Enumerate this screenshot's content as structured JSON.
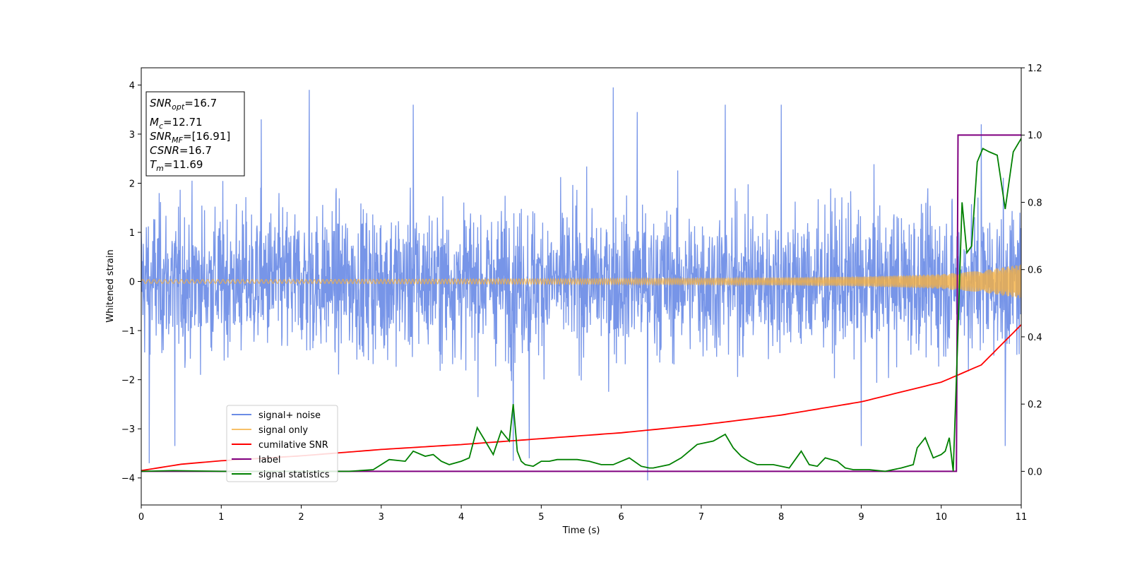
{
  "colors": {
    "signal_noise": "#6b8ce6",
    "signal_only": "#f5b041",
    "cumulative_snr": "#ff0000",
    "label": "#800080",
    "signal_statistics": "#008000"
  },
  "info_box": {
    "line1_main": "SNR",
    "line1_sub": "opt",
    "line1_value": "=16.7",
    "line2_main": "M",
    "line2_sub": "c",
    "line2_value": "=12.71",
    "line3_main": "SNR",
    "line3_sub": "MF",
    "line3_value": "=[16.91]",
    "line4_main": "CSNR",
    "line4_value": "=16.7",
    "line5_main": "T",
    "line5_sub": "m",
    "line5_value": "=11.69"
  },
  "chart_data": {
    "type": "line",
    "xlabel": "Time (s)",
    "ylabel": "Whitened strain",
    "xlim": [
      0,
      11
    ],
    "ylim": [
      -4.55,
      4.35
    ],
    "y2lim": [
      -0.1,
      1.2
    ],
    "x_ticks": [
      "0",
      "1",
      "2",
      "3",
      "4",
      "5",
      "6",
      "7",
      "8",
      "9",
      "10",
      "11"
    ],
    "y_ticks": [
      "−4",
      "−3",
      "−2",
      "−1",
      "0",
      "1",
      "2",
      "3",
      "4"
    ],
    "y2_ticks": [
      "0.0",
      "0.2",
      "0.4",
      "0.6",
      "0.8",
      "1.0",
      "1.2"
    ],
    "legend_position": "lower-left",
    "series": [
      {
        "name": "signal+ noise",
        "axis": "left",
        "description_values": "noise band approx ±2.5 with spikes to about ±4",
        "spikes": [
          [
            2.1,
            3.9
          ],
          [
            5.9,
            3.95
          ],
          [
            6.33,
            -4.05
          ],
          [
            10.5,
            3.2
          ],
          [
            0.1,
            -3.7
          ],
          [
            0.42,
            -3.35
          ],
          [
            4.65,
            -3.65
          ],
          [
            4.85,
            -3.6
          ],
          [
            9.0,
            -3.35
          ],
          [
            10.8,
            -3.35
          ],
          [
            1.5,
            3.3
          ],
          [
            3.4,
            3.6
          ],
          [
            7.3,
            3.6
          ],
          [
            8.0,
            3.6
          ],
          [
            6.2,
            3.45
          ]
        ]
      },
      {
        "name": "signal only",
        "axis": "left",
        "x": [
          0,
          2,
          4,
          6,
          8,
          9,
          10,
          10.5,
          11
        ],
        "amplitude": [
          0.04,
          0.04,
          0.05,
          0.06,
          0.08,
          0.1,
          0.15,
          0.22,
          0.35
        ]
      },
      {
        "name": "cumilative SNR",
        "axis": "left",
        "x": [
          0,
          0.5,
          1,
          2,
          3,
          4,
          5,
          6,
          7,
          8,
          9,
          10,
          10.5,
          11
        ],
        "y": [
          -3.85,
          -3.72,
          -3.65,
          -3.55,
          -3.42,
          -3.32,
          -3.2,
          -3.08,
          -2.92,
          -2.72,
          -2.45,
          -2.05,
          -1.7,
          -0.88
        ]
      },
      {
        "name": "label",
        "axis": "right",
        "x": [
          0,
          10.19,
          10.21,
          11
        ],
        "y": [
          0,
          0,
          1,
          1
        ]
      },
      {
        "name": "signal statistics",
        "axis": "right",
        "x": [
          0,
          0.4,
          1,
          2,
          2.6,
          2.9,
          3.0,
          3.1,
          3.3,
          3.4,
          3.55,
          3.65,
          3.75,
          3.85,
          4.0,
          4.1,
          4.2,
          4.3,
          4.4,
          4.5,
          4.6,
          4.65,
          4.7,
          4.75,
          4.8,
          4.9,
          5.0,
          5.1,
          5.2,
          5.3,
          5.45,
          5.6,
          5.75,
          5.9,
          6.1,
          6.25,
          6.35,
          6.4,
          6.6,
          6.75,
          6.85,
          6.95,
          7.05,
          7.15,
          7.3,
          7.4,
          7.5,
          7.6,
          7.7,
          7.9,
          8.1,
          8.25,
          8.35,
          8.45,
          8.55,
          8.7,
          8.8,
          8.9,
          9.1,
          9.3,
          9.5,
          9.65,
          9.7,
          9.8,
          9.9,
          10.0,
          10.05,
          10.1,
          10.15,
          10.2,
          10.26,
          10.32,
          10.38,
          10.45,
          10.52,
          10.6,
          10.7,
          10.8,
          10.9,
          11.0
        ],
        "y": [
          0.0,
          0.002,
          0.0,
          0.0,
          0.0,
          0.005,
          0.02,
          0.035,
          0.03,
          0.06,
          0.045,
          0.05,
          0.03,
          0.02,
          0.03,
          0.04,
          0.13,
          0.09,
          0.05,
          0.12,
          0.09,
          0.2,
          0.06,
          0.03,
          0.02,
          0.015,
          0.03,
          0.03,
          0.035,
          0.035,
          0.035,
          0.03,
          0.02,
          0.02,
          0.04,
          0.015,
          0.01,
          0.01,
          0.02,
          0.04,
          0.06,
          0.08,
          0.085,
          0.09,
          0.11,
          0.07,
          0.045,
          0.03,
          0.02,
          0.02,
          0.01,
          0.06,
          0.02,
          0.015,
          0.04,
          0.03,
          0.01,
          0.005,
          0.005,
          0.0,
          0.01,
          0.02,
          0.07,
          0.1,
          0.04,
          0.05,
          0.06,
          0.1,
          0.0,
          0.35,
          0.8,
          0.65,
          0.67,
          0.92,
          0.96,
          0.95,
          0.94,
          0.78,
          0.95,
          0.99
        ]
      }
    ]
  }
}
